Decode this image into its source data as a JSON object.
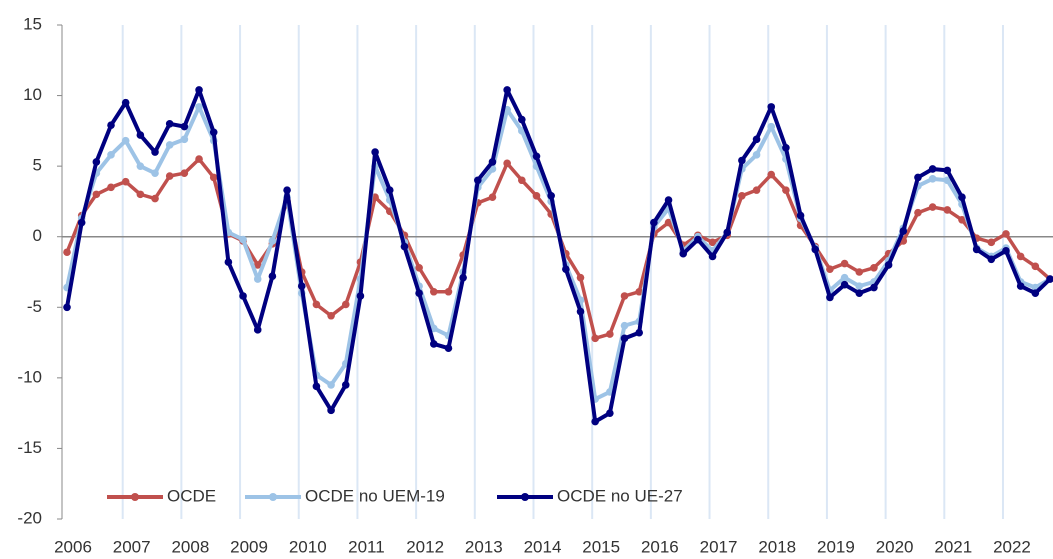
{
  "chart_data": {
    "type": "line",
    "categories": [
      "2006",
      null,
      null,
      null,
      "2007",
      null,
      null,
      null,
      "2008",
      null,
      null,
      null,
      "2009",
      null,
      null,
      null,
      "2010",
      null,
      null,
      null,
      "2011",
      null,
      null,
      null,
      "2012",
      null,
      null,
      null,
      "2013",
      null,
      null,
      null,
      "2014",
      null,
      null,
      null,
      "2015",
      null,
      null,
      null,
      "2016",
      null,
      null,
      null,
      "2017",
      null,
      null,
      null,
      "2018",
      null,
      null,
      null,
      "2019",
      null,
      null,
      null,
      "2020",
      null,
      null,
      null,
      "2021",
      null,
      null,
      null,
      "2022",
      null,
      null,
      null
    ],
    "series": [
      {
        "name": "OCDE",
        "color": "#c0504d",
        "values": [
          -1.1,
          1.5,
          3.0,
          3.5,
          3.9,
          3.0,
          2.7,
          4.3,
          4.5,
          5.5,
          4.2,
          0.2,
          -0.3,
          -2.0,
          -0.5,
          2.5,
          -2.5,
          -4.8,
          -5.6,
          -4.8,
          -1.8,
          2.8,
          1.8,
          0.1,
          -2.2,
          -3.9,
          -3.9,
          -1.3,
          2.4,
          2.8,
          5.2,
          4.0,
          2.9,
          1.6,
          -1.2,
          -2.9,
          -7.2,
          -6.9,
          -4.2,
          -3.9,
          0.2,
          1.0,
          -0.6,
          0.1,
          -0.4,
          0.1,
          2.9,
          3.3,
          4.4,
          3.3,
          0.8,
          -0.7,
          -2.3,
          -1.9,
          -2.5,
          -2.2,
          -1.2,
          -0.3,
          1.7,
          2.1,
          1.9,
          1.2,
          -0.1,
          -0.4,
          0.2,
          -1.4,
          -2.1,
          -3.0
        ]
      },
      {
        "name": "OCDE no UEM-19",
        "color": "#9dc3e6",
        "values": [
          -3.6,
          1.3,
          4.5,
          5.8,
          6.8,
          5.0,
          4.5,
          6.5,
          6.9,
          9.2,
          6.8,
          0.3,
          -0.2,
          -3.0,
          -0.3,
          2.8,
          -4.0,
          -9.8,
          -10.5,
          -9.0,
          -3.0,
          5.0,
          2.6,
          -0.4,
          -3.5,
          -6.5,
          -7.0,
          -2.5,
          3.5,
          4.8,
          9.0,
          7.5,
          5.0,
          2.5,
          -2.0,
          -4.5,
          -11.5,
          -11.0,
          -6.3,
          -6.0,
          0.7,
          2.0,
          -1.0,
          0.0,
          -1.0,
          0.3,
          4.8,
          5.8,
          7.8,
          5.5,
          1.3,
          -0.8,
          -3.8,
          -2.9,
          -3.5,
          -3.2,
          -1.7,
          0.6,
          3.6,
          4.1,
          4.0,
          2.3,
          -0.8,
          -1.4,
          -0.8,
          -3.2,
          -3.6,
          -3.0
        ]
      },
      {
        "name": "OCDE no UE-27",
        "color": "#000080",
        "values": [
          -5.0,
          1.0,
          5.3,
          7.9,
          9.5,
          7.2,
          6.0,
          8.0,
          7.8,
          10.4,
          7.4,
          -1.8,
          -4.2,
          -6.6,
          -2.8,
          3.3,
          -3.5,
          -10.6,
          -12.3,
          -10.5,
          -4.2,
          6.0,
          3.3,
          -0.7,
          -4.0,
          -7.6,
          -7.9,
          -2.9,
          4.0,
          5.3,
          10.4,
          8.3,
          5.7,
          2.9,
          -2.3,
          -5.3,
          -13.1,
          -12.5,
          -7.2,
          -6.8,
          1.0,
          2.6,
          -1.2,
          -0.2,
          -1.4,
          0.3,
          5.4,
          6.9,
          9.2,
          6.3,
          1.5,
          -0.9,
          -4.3,
          -3.4,
          -4.0,
          -3.6,
          -2.0,
          0.4,
          4.2,
          4.8,
          4.7,
          2.8,
          -0.9,
          -1.6,
          -1.0,
          -3.5,
          -4.0,
          -3.0
        ]
      }
    ],
    "ylim": [
      -20,
      15
    ],
    "yticks": [
      -20,
      -15,
      -10,
      -5,
      0,
      5,
      10,
      15
    ],
    "legend": "lower left"
  }
}
